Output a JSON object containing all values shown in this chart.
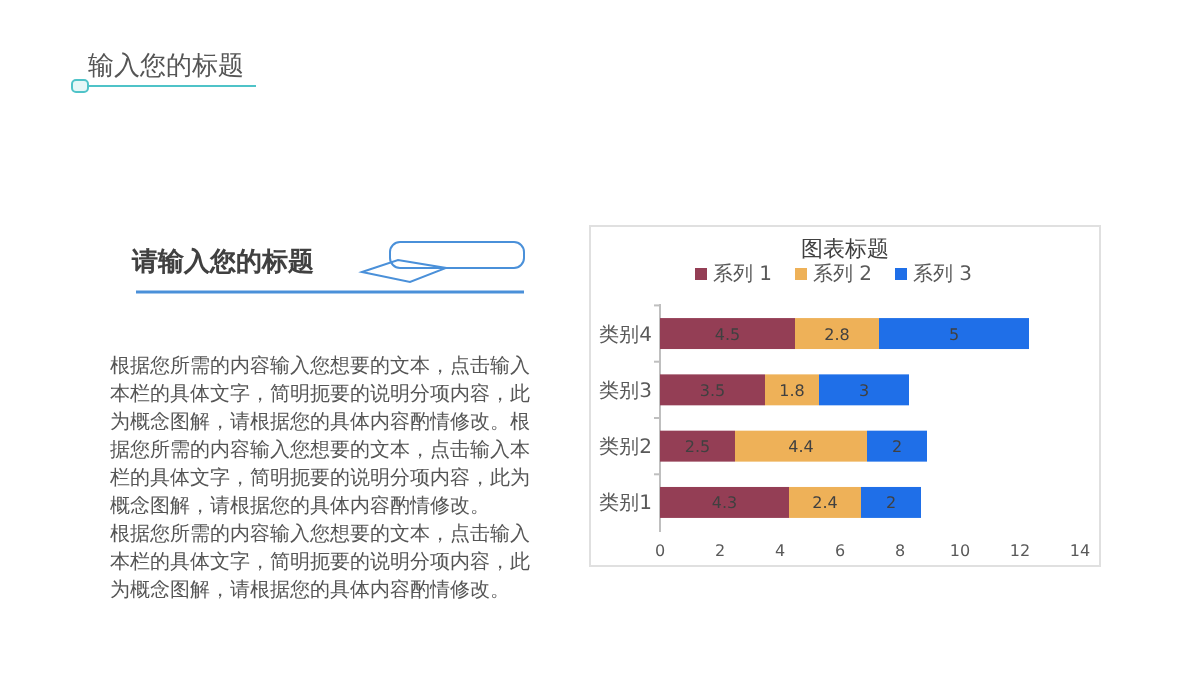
{
  "chart_data": {
    "type": "bar",
    "orientation": "horizontal",
    "stacked": true,
    "title": "图表标题",
    "categories": [
      "类别4",
      "类别3",
      "类别2",
      "类别1"
    ],
    "series": [
      {
        "name": "系列 1",
        "color": "#943e55",
        "values": [
          4.5,
          3.5,
          2.5,
          4.3
        ]
      },
      {
        "name": "系列 2",
        "color": "#eeb158",
        "values": [
          2.8,
          1.8,
          4.4,
          2.4
        ]
      },
      {
        "name": "系列 3",
        "color": "#1f6fe8",
        "values": [
          5,
          3,
          2,
          2
        ]
      }
    ],
    "xlim": [
      0,
      14
    ],
    "xticks": [
      0,
      2,
      4,
      6,
      8,
      10,
      12,
      14
    ],
    "data_labels": true,
    "legend": "top",
    "grid": false,
    "annotations": [
      "输入您的标题",
      "请输入您的标题",
      "根据您所需的内容输入您想要的文本，点击输入本栏的具体文字，简明扼要的说明分项内容，此为概念图解，请根据您的具体内容酌情修改。根据您所需的内容输入您想要的文本，点击输入本栏的具体文字，简明扼要的说明分项内容，此为概念图解，请根据您的具体内容酌情修改。",
      "根据您所需的内容输入您想要的文本，点击输入本栏的具体文字，简明扼要的说明分项内容，此为概念图解，请根据您的具体内容酌情修改。"
    ]
  }
}
